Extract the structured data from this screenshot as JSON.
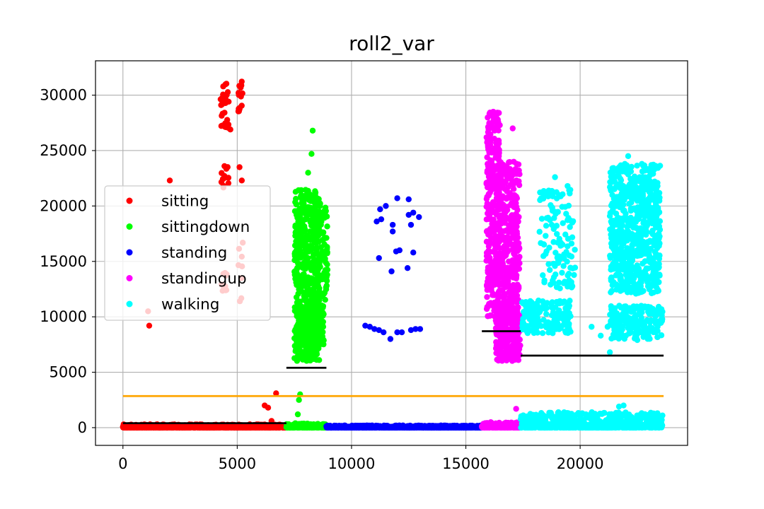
{
  "chart_data": {
    "type": "scatter",
    "title": "roll2_var",
    "xlabel": "",
    "ylabel": "",
    "xlim": [
      -1200,
      24700
    ],
    "ylim": [
      -1600,
      33100
    ],
    "x_ticks": [
      0,
      5000,
      10000,
      15000,
      20000
    ],
    "x_tick_labels": [
      "0",
      "5000",
      "10000",
      "15000",
      "20000"
    ],
    "y_ticks": [
      0,
      5000,
      10000,
      15000,
      20000,
      25000,
      30000
    ],
    "y_tick_labels": [
      "0",
      "5000",
      "10000",
      "15000",
      "20000",
      "25000",
      "30000"
    ],
    "grid": true,
    "legend_position": "center-left",
    "series": [
      {
        "name": "sitting",
        "color": "#ff0000",
        "x_range": [
          0,
          7150
        ],
        "baseline_y_range": [
          0,
          300
        ],
        "clusters": [
          {
            "x_range": [
              4250,
              4650
            ],
            "y_range": [
              27000,
              31500
            ],
            "n": 28
          },
          {
            "x_range": [
              5050,
              5250
            ],
            "y_range": [
              28500,
              31700
            ],
            "n": 14
          },
          {
            "x_range": [
              4300,
              4650
            ],
            "y_range": [
              21500,
              23700
            ],
            "n": 12
          },
          {
            "x_range": [
              4300,
              4600
            ],
            "y_range": [
              12000,
              14000
            ],
            "n": 10
          },
          {
            "x_range": [
              5050,
              5250
            ],
            "y_range": [
              9800,
              18000
            ],
            "n": 8
          }
        ],
        "points": [
          {
            "x": 1100,
            "y": 10500
          },
          {
            "x": 1150,
            "y": 9200
          },
          {
            "x": 2050,
            "y": 22300
          },
          {
            "x": 4700,
            "y": 26900
          },
          {
            "x": 5200,
            "y": 22300
          },
          {
            "x": 5100,
            "y": 23500
          },
          {
            "x": 6200,
            "y": 2000
          },
          {
            "x": 6350,
            "y": 1800
          },
          {
            "x": 6700,
            "y": 3100
          },
          {
            "x": 6500,
            "y": 600
          },
          {
            "x": 1500,
            "y": 300
          }
        ]
      },
      {
        "name": "sittingdown",
        "color": "#00ff00",
        "x_range": [
          7150,
          8900
        ],
        "baseline_y_range": [
          0,
          400
        ],
        "clusters": [
          {
            "x_range": [
              7500,
              8600
            ],
            "y_range": [
              6000,
              21500
            ],
            "n": 520
          },
          {
            "x_range": [
              7600,
              8800
            ],
            "y_range": [
              7500,
              11000
            ],
            "n": 160
          },
          {
            "x_range": [
              8300,
              8950
            ],
            "y_range": [
              11000,
              20500
            ],
            "n": 90
          }
        ],
        "points": [
          {
            "x": 8300,
            "y": 26800
          },
          {
            "x": 8250,
            "y": 24700
          },
          {
            "x": 8100,
            "y": 23000
          },
          {
            "x": 7750,
            "y": 3000
          },
          {
            "x": 7650,
            "y": 1200
          },
          {
            "x": 7700,
            "y": 2500
          }
        ]
      },
      {
        "name": "standing",
        "color": "#0000ff",
        "x_range": [
          8900,
          15700
        ],
        "baseline_y_range": [
          0,
          200
        ],
        "clusters": [],
        "points": [
          {
            "x": 10600,
            "y": 9200
          },
          {
            "x": 10800,
            "y": 9100
          },
          {
            "x": 11000,
            "y": 8900
          },
          {
            "x": 11200,
            "y": 8800
          },
          {
            "x": 11400,
            "y": 8600
          },
          {
            "x": 11700,
            "y": 8000
          },
          {
            "x": 12000,
            "y": 8600
          },
          {
            "x": 12200,
            "y": 8600
          },
          {
            "x": 12600,
            "y": 8800
          },
          {
            "x": 12800,
            "y": 8900
          },
          {
            "x": 13000,
            "y": 8900
          },
          {
            "x": 11100,
            "y": 18600
          },
          {
            "x": 11250,
            "y": 19700
          },
          {
            "x": 11300,
            "y": 18800
          },
          {
            "x": 11500,
            "y": 20000
          },
          {
            "x": 11800,
            "y": 17700
          },
          {
            "x": 11800,
            "y": 18300
          },
          {
            "x": 12000,
            "y": 20700
          },
          {
            "x": 12500,
            "y": 20600
          },
          {
            "x": 12500,
            "y": 19200
          },
          {
            "x": 12600,
            "y": 18300
          },
          {
            "x": 12700,
            "y": 19400
          },
          {
            "x": 12950,
            "y": 19000
          },
          {
            "x": 11200,
            "y": 15300
          },
          {
            "x": 11750,
            "y": 14100
          },
          {
            "x": 11950,
            "y": 15900
          },
          {
            "x": 12100,
            "y": 16000
          },
          {
            "x": 12450,
            "y": 14400
          },
          {
            "x": 12700,
            "y": 15800
          }
        ]
      },
      {
        "name": "standingup",
        "color": "#ff00ff",
        "x_range": [
          15700,
          17400
        ],
        "baseline_y_range": [
          0,
          500
        ],
        "clusters": [
          {
            "x_range": [
              15900,
              16500
            ],
            "y_range": [
              10000,
              28500
            ],
            "n": 300
          },
          {
            "x_range": [
              16400,
              17350
            ],
            "y_range": [
              6000,
              24000
            ],
            "n": 420
          },
          {
            "x_range": [
              16300,
              17400
            ],
            "y_range": [
              6000,
              11000
            ],
            "n": 160
          }
        ],
        "points": [
          {
            "x": 17050,
            "y": 27000
          },
          {
            "x": 16200,
            "y": 28500
          },
          {
            "x": 17200,
            "y": 1700
          }
        ]
      },
      {
        "name": "walking",
        "color": "#00ffff",
        "x_range": [
          17400,
          23600
        ],
        "baseline_y_range": [
          0,
          1400
        ],
        "clusters": [
          {
            "x_range": [
              17450,
              19600
            ],
            "y_range": [
              8500,
              11500
            ],
            "n": 160
          },
          {
            "x_range": [
              18200,
              19800
            ],
            "y_range": [
              12500,
              21500
            ],
            "n": 120
          },
          {
            "x_range": [
              21300,
              23500
            ],
            "y_range": [
              12000,
              23800
            ],
            "n": 700
          },
          {
            "x_range": [
              21300,
              23600
            ],
            "y_range": [
              8000,
              11000
            ],
            "n": 200
          }
        ],
        "points": [
          {
            "x": 18900,
            "y": 22600
          },
          {
            "x": 19450,
            "y": 21800
          },
          {
            "x": 21300,
            "y": 6800
          },
          {
            "x": 21200,
            "y": 9100
          },
          {
            "x": 20500,
            "y": 9100
          },
          {
            "x": 20900,
            "y": 8300
          },
          {
            "x": 22100,
            "y": 24500
          },
          {
            "x": 22700,
            "y": 23800
          },
          {
            "x": 22500,
            "y": 7900
          },
          {
            "x": 21900,
            "y": 2000
          },
          {
            "x": 21700,
            "y": 1900
          },
          {
            "x": 23600,
            "y": 1100
          }
        ]
      }
    ],
    "reference_lines": [
      {
        "color": "#ffa500",
        "x": [
          0,
          23650
        ],
        "y": 2850
      },
      {
        "color": "#000000",
        "x": [
          0,
          7150
        ],
        "y": 400
      },
      {
        "color": "#000000",
        "x": [
          7150,
          8900
        ],
        "y": 5400
      },
      {
        "color": "#000000",
        "x": [
          15700,
          17400
        ],
        "y": 8700
      },
      {
        "color": "#000000",
        "x": [
          17400,
          23650
        ],
        "y": 6500
      }
    ]
  }
}
